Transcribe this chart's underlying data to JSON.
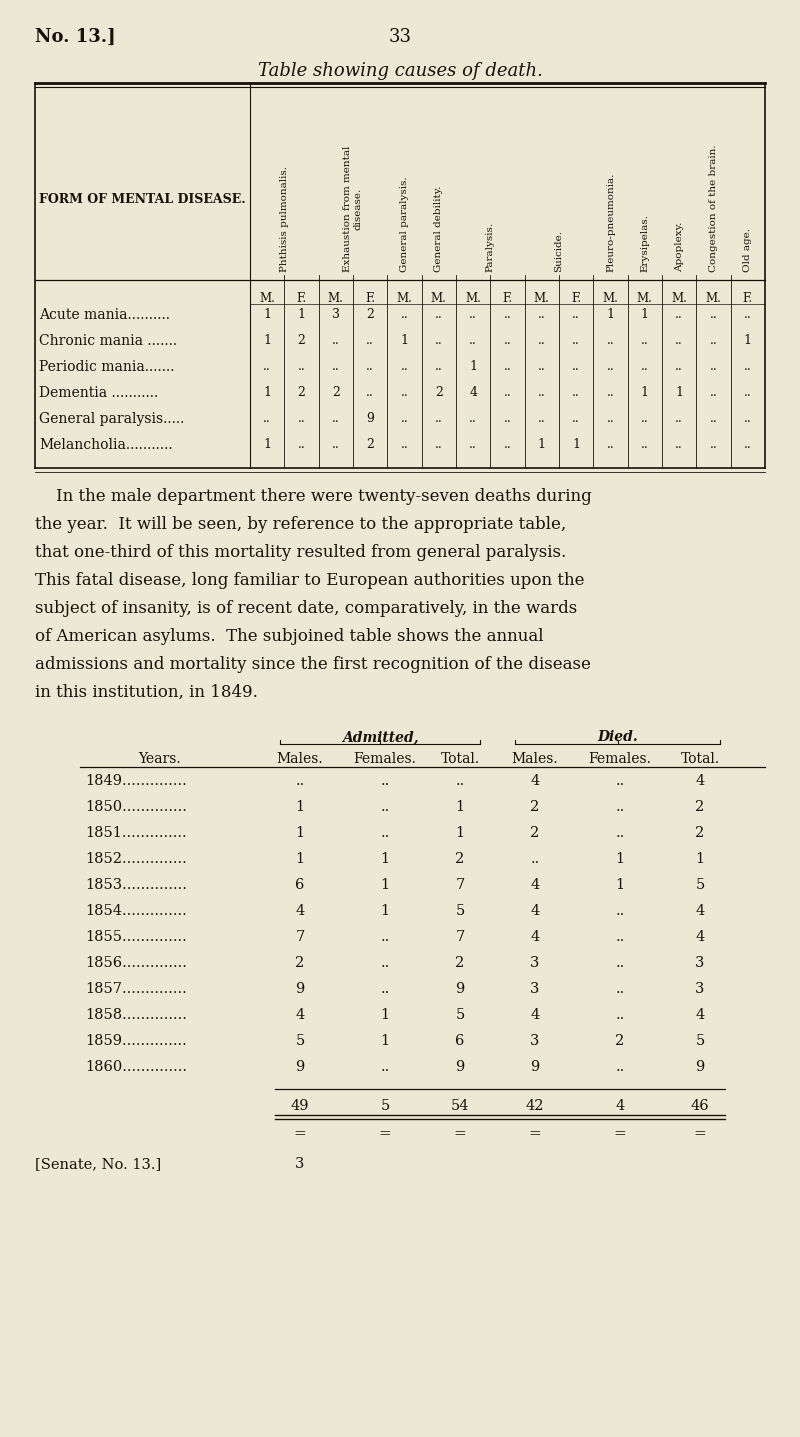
{
  "bg_color": "#ede8d5",
  "text_color": "#1a1008",
  "page_header_left": "No. 13.]",
  "page_header_center": "33",
  "table1_title": "Table showing causes of death.",
  "table1_col_header": "FORM OF MENTAL DISEASE.",
  "table1_rotated_headers": [
    "Phthisis pulmonalis.",
    "Exhaustion from mental disease.",
    "General paralysis.",
    "General debility.",
    "Paralysis.",
    "Suicide.",
    "Pleuro-pneumonia.",
    "Erysipelas.",
    "Apoplexy.",
    "Congestion of the brain.",
    "Old age."
  ],
  "table1_mf_row": [
    "M.",
    "F.",
    "M.",
    "F.",
    "M.",
    "M.",
    "M.",
    "F.",
    "M.",
    "F.",
    "M.",
    "M.",
    "M.",
    "M.",
    "F."
  ],
  "table1_rows": [
    {
      "label": "Acute mania..........",
      "values": [
        "1",
        "1",
        "3",
        "2",
        "..",
        "..",
        "..",
        "..",
        "..",
        "..",
        "1",
        "1",
        "..",
        "..",
        ".."
      ]
    },
    {
      "label": "Chronic mania .......",
      "values": [
        "1",
        "2",
        "..",
        "..",
        "1",
        "..",
        "..",
        "..",
        "..",
        "..",
        "..",
        "..",
        "..",
        "..",
        "1"
      ]
    },
    {
      "label": "Periodic mania.......",
      "values": [
        "..",
        "..",
        "..",
        "..",
        "..",
        "..",
        "1",
        "..",
        "..",
        "..",
        "..",
        "..",
        "..",
        "..",
        ".."
      ]
    },
    {
      "label": "Dementia ...........",
      "values": [
        "1",
        "2",
        "2",
        "..",
        "..",
        "2",
        "4",
        "..",
        "..",
        "..",
        "..",
        "1",
        "1",
        "..",
        ".."
      ]
    },
    {
      "label": "General paralysis.....",
      "values": [
        "..",
        "..",
        "..",
        "9",
        "..",
        "..",
        "..",
        "..",
        "..",
        "..",
        "..",
        "..",
        "..",
        "..",
        ".."
      ]
    },
    {
      "label": "Melancholia...........",
      "values": [
        "1",
        "..",
        "..",
        "2",
        "..",
        "..",
        "..",
        "..",
        "1",
        "1",
        "..",
        "..",
        "..",
        "..",
        ".."
      ]
    }
  ],
  "paragraph_lines": [
    "    In the male department there were twenty-seven deaths during",
    "the year.  It will be seen, by reference to the appropriate table,",
    "that one-third of this mortality resulted from general paralysis.",
    "This fatal disease, long familiar to European authorities upon the",
    "subject of insanity, is of recent date, comparatively, in the wards",
    "of American asylums.  The subjoined table shows the annual",
    "admissions and mortality since the first recognition of the disease",
    "in this institution, in 1849."
  ],
  "table2_rows": [
    {
      "year": "1849..............",
      "adm_m": "--",
      "adm_f": "--",
      "adm_t": "--",
      "die_m": "4",
      "die_f": "--",
      "die_t": "4"
    },
    {
      "year": "1850..............",
      "adm_m": "1",
      "adm_f": "--",
      "adm_t": "1",
      "die_m": "2",
      "die_f": "--",
      "die_t": "2"
    },
    {
      "year": "1851..............",
      "adm_m": "1",
      "adm_f": "--",
      "adm_t": "1",
      "die_m": "2",
      "die_f": "--",
      "die_t": "2"
    },
    {
      "year": "1852..............",
      "adm_m": "1",
      "adm_f": "1",
      "adm_t": "2",
      "die_m": "--",
      "die_f": "1",
      "die_t": "1"
    },
    {
      "year": "1853..............",
      "adm_m": "6",
      "adm_f": "1",
      "adm_t": "7",
      "die_m": "4",
      "die_f": "1",
      "die_t": "5"
    },
    {
      "year": "1854..............",
      "adm_m": "4",
      "adm_f": "1",
      "adm_t": "5",
      "die_m": "4",
      "die_f": "--",
      "die_t": "4"
    },
    {
      "year": "1855..............",
      "adm_m": "7",
      "adm_f": "--",
      "adm_t": "7",
      "die_m": "4",
      "die_f": "--",
      "die_t": "4"
    },
    {
      "year": "1856..............",
      "adm_m": "2",
      "adm_f": "--",
      "adm_t": "2",
      "die_m": "3",
      "die_f": "--",
      "die_t": "3"
    },
    {
      "year": "1857..............",
      "adm_m": "9",
      "adm_f": "--",
      "adm_t": "9",
      "die_m": "3",
      "die_f": "--",
      "die_t": "3"
    },
    {
      "year": "1858..............",
      "adm_m": "4",
      "adm_f": "1",
      "adm_t": "5",
      "die_m": "4",
      "die_f": "--",
      "die_t": "4"
    },
    {
      "year": "1859..............",
      "adm_m": "5",
      "adm_f": "1",
      "adm_t": "6",
      "die_m": "3",
      "die_f": "2",
      "die_t": "5"
    },
    {
      "year": "1860..............",
      "adm_m": "9",
      "adm_f": "--",
      "adm_t": "9",
      "die_m": "9",
      "die_f": "--",
      "die_t": "9"
    }
  ],
  "table2_totals": {
    "adm_m": "49",
    "adm_f": "5",
    "adm_t": "54",
    "die_m": "42",
    "die_f": "4",
    "die_t": "46"
  },
  "footer_left": "[Senate, No. 13.]",
  "footer_center": "3"
}
